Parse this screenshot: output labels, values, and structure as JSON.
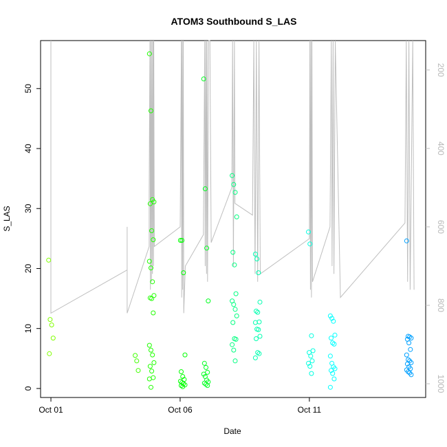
{
  "chart_data": {
    "type": "scatter",
    "title": "ATOM3 Southbound S_LAS",
    "xlabel": "Date",
    "ylabel": "S_LAS",
    "x_ticks": [
      "Oct 01",
      "Oct 06",
      "Oct 11"
    ],
    "x_tick_days": [
      1,
      6,
      11
    ],
    "xlim_days": [
      0.6,
      15.5
    ],
    "ylim": [
      -1.5,
      58
    ],
    "y_ticks": [
      0,
      10,
      20,
      30,
      40,
      50
    ],
    "right_axis": {
      "label": "",
      "reversed": true,
      "ylim": [
        1035,
        125
      ],
      "ticks": [
        200,
        400,
        600,
        800,
        1000
      ],
      "color": "#bebebe"
    },
    "grid": false,
    "legend": "none",
    "point_groups": [
      {
        "color": "#80ff00",
        "day": 1.0,
        "values": [
          21.4,
          11.5,
          10.6,
          8.4,
          5.8
        ]
      },
      {
        "color": "#40ff00",
        "day": 4.35,
        "values": [
          5.5,
          4.6,
          3.0
        ]
      },
      {
        "color": "#20ff00",
        "day": 4.9,
        "values": [
          55.8,
          46.3,
          31.5,
          31.1,
          30.8,
          26.3,
          24.8,
          21.2,
          20.1,
          17.8,
          15.5,
          15.1,
          15.0,
          12.6,
          7.2,
          6.4,
          5.6,
          4.3,
          3.7,
          2.9,
          1.8,
          1.6,
          0.2
        ]
      },
      {
        "color": "#00ff00",
        "day": 6.1,
        "values": [
          24.7,
          24.7,
          19.3,
          5.6,
          2.8,
          2.0,
          1.5,
          1.2,
          1.0,
          0.8,
          0.6,
          0.5,
          0.3
        ]
      },
      {
        "color": "#00ff20",
        "day": 7.0,
        "values": [
          51.6,
          33.3,
          23.4,
          14.6,
          4.2,
          3.5,
          2.7,
          2.4,
          2.0,
          1.4,
          1.1,
          0.9,
          0.7,
          0.5
        ]
      },
      {
        "color": "#00ff80",
        "day": 8.1,
        "values": [
          35.5,
          34.0,
          32.7,
          28.6,
          22.7,
          20.6,
          15.8,
          14.6,
          14.0,
          13.2,
          12.1,
          11.0,
          8.3,
          8.2,
          7.3,
          6.4,
          4.6
        ]
      },
      {
        "color": "#00ffb0",
        "day": 9.0,
        "values": [
          22.4,
          21.6,
          19.3,
          14.4,
          12.9,
          12.7,
          11.1,
          11.0,
          9.9,
          9.8,
          8.7,
          8.3,
          6.0,
          5.8,
          5.1
        ]
      },
      {
        "color": "#00ffe0",
        "day": 11.05,
        "values": [
          26.1,
          24.1,
          8.8,
          6.3,
          6.0,
          5.4,
          4.6,
          4.2,
          3.7,
          2.5
        ]
      },
      {
        "color": "#00ffff",
        "day": 11.9,
        "values": [
          12.1,
          11.7,
          11.2,
          8.9,
          8.4,
          7.6,
          7.4,
          5.4,
          4.2,
          3.6,
          3.3,
          3.0,
          2.5,
          1.6,
          0.2
        ]
      },
      {
        "color": "#00a0ff",
        "day": 14.85,
        "values": [
          24.6,
          8.7,
          8.6,
          8.4,
          8.2,
          7.6,
          6.5,
          5.6,
          4.8,
          4.6,
          4.3,
          4.1,
          3.6,
          3.3,
          3.1,
          2.8,
          2.6,
          2.3
        ]
      }
    ],
    "depth_trace": {
      "color": "#bebebe",
      "note": "secondary series on reversed right axis",
      "points": [
        [
          1.0,
          820
        ],
        [
          1.0,
          125
        ],
        [
          1.0,
          820
        ],
        [
          3.95,
          710
        ],
        [
          3.95,
          600
        ],
        [
          3.95,
          820
        ],
        [
          4.8,
          650
        ],
        [
          4.8,
          520
        ],
        [
          4.83,
          125
        ],
        [
          4.85,
          760
        ],
        [
          4.87,
          125
        ],
        [
          4.89,
          740
        ],
        [
          4.91,
          125
        ],
        [
          4.93,
          720
        ],
        [
          4.95,
          125
        ],
        [
          4.97,
          700
        ],
        [
          4.98,
          125
        ],
        [
          5.0,
          650
        ],
        [
          6.0,
          600
        ],
        [
          6.05,
          125
        ],
        [
          6.06,
          780
        ],
        [
          6.08,
          125
        ],
        [
          6.1,
          760
        ],
        [
          6.12,
          125
        ],
        [
          6.14,
          820
        ],
        [
          6.2,
          700
        ],
        [
          6.9,
          620
        ],
        [
          6.95,
          125
        ],
        [
          6.97,
          700
        ],
        [
          7.0,
          125
        ],
        [
          7.02,
          720
        ],
        [
          7.04,
          125
        ],
        [
          7.06,
          740
        ],
        [
          7.1,
          125
        ],
        [
          7.15,
          125
        ],
        [
          7.2,
          640
        ],
        [
          8.0,
          500
        ],
        [
          8.03,
          125
        ],
        [
          8.06,
          700
        ],
        [
          8.1,
          125
        ],
        [
          8.12,
          540
        ],
        [
          8.8,
          570
        ],
        [
          8.85,
          125
        ],
        [
          8.9,
          720
        ],
        [
          8.95,
          125
        ],
        [
          9.0,
          740
        ],
        [
          9.05,
          125
        ],
        [
          9.1,
          720
        ],
        [
          11.0,
          630
        ],
        [
          11.02,
          125
        ],
        [
          11.04,
          760
        ],
        [
          11.06,
          125
        ],
        [
          11.08,
          780
        ],
        [
          11.1,
          125
        ],
        [
          11.12,
          740
        ],
        [
          11.8,
          600
        ],
        [
          11.85,
          125
        ],
        [
          11.88,
          700
        ],
        [
          11.92,
          125
        ],
        [
          11.95,
          720
        ],
        [
          12.0,
          125
        ],
        [
          12.2,
          780
        ],
        [
          14.7,
          590
        ],
        [
          14.75,
          125
        ],
        [
          14.8,
          740
        ],
        [
          14.85,
          125
        ],
        [
          14.9,
          760
        ],
        [
          15.0,
          125
        ],
        [
          15.05,
          760
        ]
      ]
    }
  }
}
